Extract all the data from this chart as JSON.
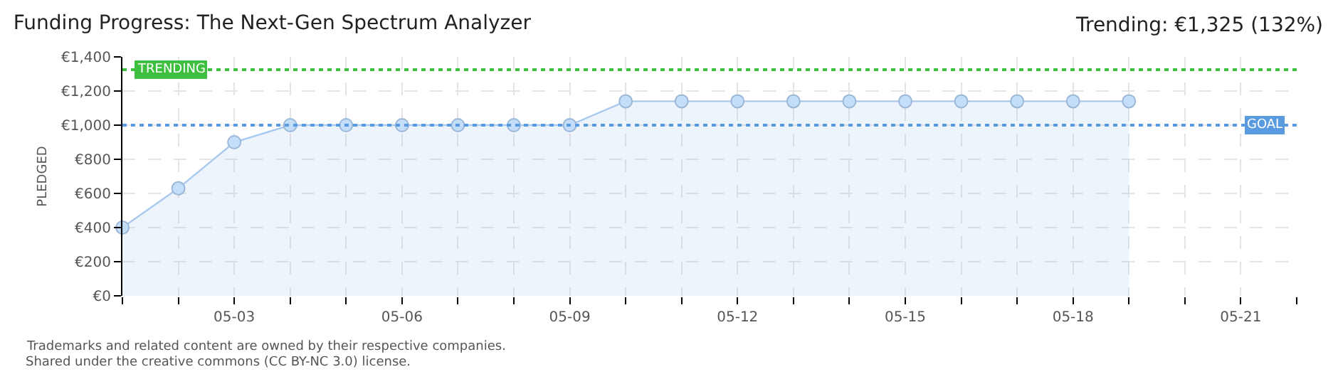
{
  "chart_data": {
    "type": "area",
    "title": "Funding Progress: The Next-Gen Spectrum Analyzer",
    "subtitle": "Trending: €1,325 (132%)",
    "ylabel": "PLEDGED",
    "x": [
      "--05-01",
      "--05-02",
      "--05-03",
      "--05-04",
      "--05-05",
      "--05-06",
      "--05-07",
      "--05-08",
      "--05-09",
      "--05-10",
      "--05-11",
      "--05-12",
      "--05-13",
      "--05-14",
      "--05-15",
      "--05-16",
      "--05-17",
      "--05-18",
      "--05-19"
    ],
    "series": [
      {
        "color": "#a9c9ee",
        "values": [
          400,
          630,
          900,
          1000,
          1000,
          1000,
          1000,
          1000,
          1000,
          1140,
          1140,
          1140,
          1140,
          1140,
          1140,
          1140,
          1140,
          1140,
          1140
        ]
      }
    ],
    "xlim": [
      "--05-01",
      "--05-22"
    ],
    "xticks": [
      {
        "value": "--05-01",
        "label": null
      },
      {
        "value": "--05-02",
        "label": null
      },
      {
        "value": "--05-03",
        "label": "05-03"
      },
      {
        "value": "--05-04",
        "label": null
      },
      {
        "value": "--05-05",
        "label": null
      },
      {
        "value": "--05-06",
        "label": "05-06"
      },
      {
        "value": "--05-07",
        "label": null
      },
      {
        "value": "--05-08",
        "label": null
      },
      {
        "value": "--05-09",
        "label": "05-09"
      },
      {
        "value": "--05-10",
        "label": null
      },
      {
        "value": "--05-11",
        "label": null
      },
      {
        "value": "--05-12",
        "label": "05-12"
      },
      {
        "value": "--05-13",
        "label": null
      },
      {
        "value": "--05-14",
        "label": null
      },
      {
        "value": "--05-15",
        "label": "05-15"
      },
      {
        "value": "--05-16",
        "label": null
      },
      {
        "value": "--05-17",
        "label": null
      },
      {
        "value": "--05-18",
        "label": "05-18"
      },
      {
        "value": "--05-19",
        "label": null
      },
      {
        "value": "--05-20",
        "label": null
      },
      {
        "value": "--05-21",
        "label": "05-21"
      },
      {
        "value": "--05-22",
        "label": null
      }
    ],
    "ylim": [
      0,
      1400
    ],
    "yticks": [
      {
        "value": 0,
        "label": "€0"
      },
      {
        "value": 200,
        "label": "€200"
      },
      {
        "value": 400,
        "label": "€400"
      },
      {
        "value": 600,
        "label": "€600"
      },
      {
        "value": 800,
        "label": "€800"
      },
      {
        "value": 1000,
        "label": "€1,000"
      },
      {
        "value": 1200,
        "label": "€1,200"
      },
      {
        "value": 1400,
        "label": "€1,400"
      }
    ],
    "ref_lines": [
      {
        "axis": "y",
        "value": 1325,
        "label": "TRENDING",
        "color": "#3fbf3f",
        "line_style": "dotted"
      },
      {
        "axis": "y",
        "value": 1000,
        "label": "GOAL",
        "color": "#5a9be0",
        "line_style": "dotted"
      }
    ],
    "annotations": [
      "Trademarks and related content are owned by their respective companies.",
      "Shared under the creative commons (CC BY-NC 3.0) license."
    ],
    "grid": true,
    "legend": false,
    "marker": "circle",
    "line_style": "solid"
  }
}
